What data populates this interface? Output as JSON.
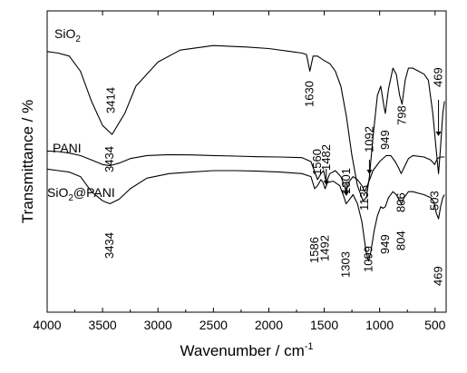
{
  "chart_data": {
    "type": "line",
    "xlabel": "Wavenumber / cm",
    "xlabel_sup": "-1",
    "ylabel": "Transmittance / %",
    "xlim": [
      4000,
      400
    ],
    "x_reversed": true,
    "y_ticks_shown": false,
    "x_ticks": [
      4000,
      3500,
      3000,
      2500,
      2000,
      1500,
      1000,
      500
    ],
    "line_color": "#000000",
    "series": [
      {
        "name": "SiO2",
        "label_main": "SiO",
        "label_sub": "2",
        "label_suffix": "",
        "points": [
          [
            4000,
            0.865
          ],
          [
            3900,
            0.86
          ],
          [
            3800,
            0.85
          ],
          [
            3700,
            0.8
          ],
          [
            3600,
            0.7
          ],
          [
            3500,
            0.62
          ],
          [
            3414,
            0.59
          ],
          [
            3300,
            0.66
          ],
          [
            3200,
            0.75
          ],
          [
            3000,
            0.83
          ],
          [
            2800,
            0.87
          ],
          [
            2500,
            0.885
          ],
          [
            2200,
            0.88
          ],
          [
            2000,
            0.875
          ],
          [
            1800,
            0.865
          ],
          [
            1700,
            0.86
          ],
          [
            1660,
            0.855
          ],
          [
            1630,
            0.8
          ],
          [
            1600,
            0.85
          ],
          [
            1560,
            0.85
          ],
          [
            1500,
            0.835
          ],
          [
            1450,
            0.825
          ],
          [
            1400,
            0.8
          ],
          [
            1350,
            0.75
          ],
          [
            1300,
            0.65
          ],
          [
            1250,
            0.52
          ],
          [
            1200,
            0.42
          ],
          [
            1150,
            0.37
          ],
          [
            1120,
            0.38
          ],
          [
            1092,
            0.45
          ],
          [
            1060,
            0.58
          ],
          [
            1020,
            0.72
          ],
          [
            990,
            0.75
          ],
          [
            960,
            0.68
          ],
          [
            949,
            0.66
          ],
          [
            920,
            0.74
          ],
          [
            880,
            0.81
          ],
          [
            850,
            0.79
          ],
          [
            820,
            0.72
          ],
          [
            798,
            0.69
          ],
          [
            770,
            0.77
          ],
          [
            740,
            0.81
          ],
          [
            700,
            0.81
          ],
          [
            650,
            0.8
          ],
          [
            600,
            0.79
          ],
          [
            560,
            0.77
          ],
          [
            520,
            0.66
          ],
          [
            490,
            0.54
          ],
          [
            469,
            0.46
          ],
          [
            450,
            0.55
          ],
          [
            430,
            0.66
          ],
          [
            415,
            0.7
          ]
        ],
        "annotations": [
          {
            "text": "3414",
            "x": 3414
          },
          {
            "text": "1630",
            "x": 1630
          },
          {
            "text": "949",
            "x": 949
          },
          {
            "text": "798",
            "x": 798
          },
          {
            "text": "469",
            "x": 469
          }
        ]
      },
      {
        "name": "PANI",
        "label_main": "PANI",
        "label_sub": "",
        "label_suffix": "",
        "points": [
          [
            4000,
            0.535
          ],
          [
            3900,
            0.533
          ],
          [
            3800,
            0.528
          ],
          [
            3700,
            0.52
          ],
          [
            3600,
            0.505
          ],
          [
            3500,
            0.49
          ],
          [
            3434,
            0.486
          ],
          [
            3350,
            0.495
          ],
          [
            3250,
            0.51
          ],
          [
            3100,
            0.52
          ],
          [
            2900,
            0.523
          ],
          [
            2700,
            0.522
          ],
          [
            2500,
            0.52
          ],
          [
            2300,
            0.518
          ],
          [
            2100,
            0.516
          ],
          [
            1900,
            0.515
          ],
          [
            1700,
            0.513
          ],
          [
            1620,
            0.5
          ],
          [
            1590,
            0.47
          ],
          [
            1560,
            0.44
          ],
          [
            1530,
            0.46
          ],
          [
            1505,
            0.47
          ],
          [
            1482,
            0.43
          ],
          [
            1450,
            0.46
          ],
          [
            1400,
            0.47
          ],
          [
            1350,
            0.45
          ],
          [
            1320,
            0.42
          ],
          [
            1301,
            0.4
          ],
          [
            1280,
            0.43
          ],
          [
            1240,
            0.45
          ],
          [
            1200,
            0.44
          ],
          [
            1160,
            0.42
          ],
          [
            1135,
            0.4
          ],
          [
            1100,
            0.43
          ],
          [
            1060,
            0.47
          ],
          [
            1000,
            0.5
          ],
          [
            940,
            0.52
          ],
          [
            900,
            0.52
          ],
          [
            860,
            0.5
          ],
          [
            830,
            0.48
          ],
          [
            806,
            0.46
          ],
          [
            780,
            0.48
          ],
          [
            740,
            0.51
          ],
          [
            700,
            0.52
          ],
          [
            600,
            0.515
          ],
          [
            540,
            0.505
          ],
          [
            503,
            0.49
          ],
          [
            480,
            0.51
          ],
          [
            450,
            0.515
          ],
          [
            415,
            0.515
          ]
        ],
        "annotations": [
          {
            "text": "3434",
            "x": 3434
          },
          {
            "text": "1560",
            "x": 1560
          },
          {
            "text": "1482",
            "x": 1482
          },
          {
            "text": "1301",
            "x": 1301
          },
          {
            "text": "1135",
            "x": 1135
          },
          {
            "text": "1092",
            "x": 1092
          },
          {
            "text": "806",
            "x": 806
          },
          {
            "text": "503",
            "x": 503
          }
        ]
      },
      {
        "name": "SiO2@PANI",
        "label_main": "SiO",
        "label_sub": "2",
        "label_suffix": "@PANI",
        "points": [
          [
            4000,
            0.475
          ],
          [
            3900,
            0.47
          ],
          [
            3800,
            0.465
          ],
          [
            3700,
            0.45
          ],
          [
            3600,
            0.4
          ],
          [
            3500,
            0.37
          ],
          [
            3434,
            0.36
          ],
          [
            3350,
            0.375
          ],
          [
            3250,
            0.41
          ],
          [
            3100,
            0.445
          ],
          [
            2900,
            0.46
          ],
          [
            2700,
            0.465
          ],
          [
            2500,
            0.47
          ],
          [
            2300,
            0.47
          ],
          [
            2100,
            0.468
          ],
          [
            1900,
            0.465
          ],
          [
            1700,
            0.46
          ],
          [
            1620,
            0.45
          ],
          [
            1586,
            0.41
          ],
          [
            1560,
            0.42
          ],
          [
            1530,
            0.44
          ],
          [
            1510,
            0.43
          ],
          [
            1492,
            0.41
          ],
          [
            1470,
            0.43
          ],
          [
            1420,
            0.435
          ],
          [
            1360,
            0.42
          ],
          [
            1320,
            0.38
          ],
          [
            1303,
            0.36
          ],
          [
            1280,
            0.37
          ],
          [
            1240,
            0.39
          ],
          [
            1200,
            0.36
          ],
          [
            1160,
            0.3
          ],
          [
            1130,
            0.22
          ],
          [
            1110,
            0.18
          ],
          [
            1099,
            0.17
          ],
          [
            1080,
            0.2
          ],
          [
            1050,
            0.27
          ],
          [
            1020,
            0.32
          ],
          [
            990,
            0.35
          ],
          [
            970,
            0.345
          ],
          [
            949,
            0.35
          ],
          [
            920,
            0.38
          ],
          [
            880,
            0.4
          ],
          [
            850,
            0.39
          ],
          [
            820,
            0.37
          ],
          [
            804,
            0.36
          ],
          [
            780,
            0.38
          ],
          [
            740,
            0.4
          ],
          [
            700,
            0.4
          ],
          [
            650,
            0.395
          ],
          [
            600,
            0.39
          ],
          [
            540,
            0.38
          ],
          [
            510,
            0.365
          ],
          [
            490,
            0.33
          ],
          [
            469,
            0.31
          ],
          [
            450,
            0.35
          ],
          [
            430,
            0.38
          ],
          [
            415,
            0.39
          ]
        ],
        "annotations": [
          {
            "text": "3434",
            "x": 3434
          },
          {
            "text": "1586",
            "x": 1586
          },
          {
            "text": "1492",
            "x": 1492
          },
          {
            "text": "1303",
            "x": 1303
          },
          {
            "text": "1099",
            "x": 1099
          },
          {
            "text": "949",
            "x": 949
          },
          {
            "text": "804",
            "x": 804
          },
          {
            "text": "469",
            "x": 469
          }
        ]
      }
    ]
  }
}
